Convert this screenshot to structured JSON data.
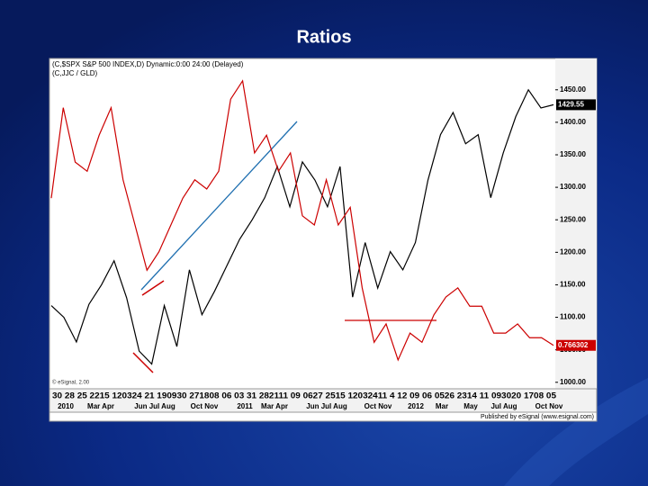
{
  "slide_title": "Ratios",
  "chart_data": {
    "type": "line",
    "header": [
      "(C,$SPX   S&P 500 INDEX,D) Dynamic:0:00 24:00 (Delayed)",
      "(C,JJC / GLD)"
    ],
    "x_labels_top": "30 28 25 2215 120324 21 190930 271808 06 03 31 282111 09 0627 2515 12032411 4 12 09 06 0526 2314 11 093020 1708 05",
    "x_labels_bottom": [
      "2010",
      "Mar Apr",
      "Jun Jul Aug",
      "Oct Nov",
      "2011",
      "Mar Apr",
      "Jun Jul Aug",
      "Oct Nov",
      "2012",
      "Mar",
      "May",
      "Jul Aug",
      "Oct Nov"
    ],
    "ylim": [
      990,
      1494
    ],
    "yticks": [
      {
        "value": 1000,
        "label": "1000.00"
      },
      {
        "value": 1050,
        "label": "1050.00"
      },
      {
        "value": 1100,
        "label": "1100.00"
      },
      {
        "value": 1150,
        "label": "1150.00"
      },
      {
        "value": 1200,
        "label": "1200.00"
      },
      {
        "value": 1250,
        "label": "1250.00"
      },
      {
        "value": 1300,
        "label": "1300.00"
      },
      {
        "value": 1350,
        "label": "1350.00"
      },
      {
        "value": 1400,
        "label": "1400.00"
      },
      {
        "value": 1450,
        "label": "1450.00"
      }
    ],
    "y2lim": [
      0.7,
      1.2
    ],
    "series": [
      {
        "name": "S&P 500 INDEX",
        "color": "#000000",
        "last_label": "1429.55",
        "values": [
          1118,
          1100,
          1062,
          1120,
          1150,
          1187,
          1130,
          1048,
          1028,
          1118,
          1055,
          1173,
          1104,
          1140,
          1180,
          1220,
          1250,
          1284,
          1332,
          1270,
          1339,
          1311,
          1270,
          1332,
          1131,
          1215,
          1145,
          1201,
          1173,
          1215,
          1311,
          1381,
          1415,
          1367,
          1381,
          1284,
          1353,
          1409,
          1450,
          1422,
          1427
        ]
      },
      {
        "name": "JJC / GLD",
        "color": "#cc0000",
        "axis": "y2",
        "last_label": "0.766302",
        "values": [
          0.991,
          1.129,
          1.046,
          1.032,
          1.087,
          1.129,
          1.019,
          0.95,
          0.881,
          0.909,
          0.95,
          0.991,
          1.019,
          1.005,
          1.032,
          1.142,
          1.17,
          1.06,
          1.087,
          1.032,
          1.06,
          0.964,
          0.95,
          1.019,
          0.95,
          0.977,
          0.854,
          0.771,
          0.799,
          0.744,
          0.785,
          0.771,
          0.813,
          0.84,
          0.854,
          0.826,
          0.826,
          0.785,
          0.785,
          0.799,
          0.778,
          0.778,
          0.766302
        ]
      }
    ],
    "footer": "Published by eSignal (www.esignal.com)",
    "watermark": "© eSignal, 2.00"
  }
}
